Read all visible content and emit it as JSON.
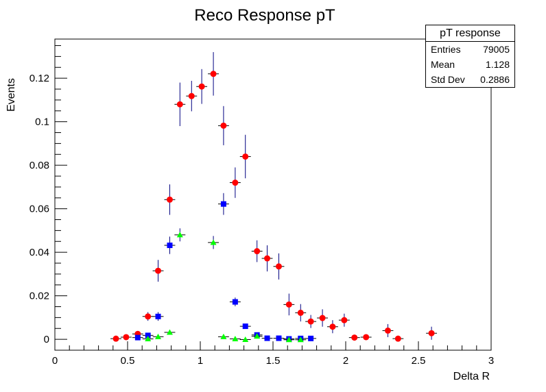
{
  "chart_data": {
    "type": "scatter",
    "title": "Reco Response pT",
    "xlabel": "Delta R",
    "ylabel": "Events",
    "xlim": [
      0,
      3
    ],
    "ylim": [
      -0.005,
      0.138
    ],
    "xticks": [
      "0",
      "0.5",
      "1",
      "1.5",
      "2",
      "2.5",
      "3"
    ],
    "yticks": [
      "0",
      "0.02",
      "0.04",
      "0.06",
      "0.08",
      "0.1",
      "0.12"
    ],
    "grid": false,
    "stats": {
      "title": "pT response",
      "rows": [
        {
          "label": "Entries",
          "value": "79005"
        },
        {
          "label": "Mean",
          "value": "1.128"
        },
        {
          "label": "Std Dev",
          "value": "0.2886"
        }
      ]
    },
    "series": [
      {
        "marker": "circle",
        "color": "#ff0000",
        "errcolor": "#000080",
        "points": [
          {
            "x": 0.42,
            "y": 0.0003,
            "e": 0.0005
          },
          {
            "x": 0.49,
            "y": 0.001,
            "e": 0.0005
          },
          {
            "x": 0.57,
            "y": 0.0025,
            "e": 0.001
          },
          {
            "x": 0.64,
            "y": 0.0105,
            "e": 0.002
          },
          {
            "x": 0.71,
            "y": 0.0315,
            "e": 0.005
          },
          {
            "x": 0.79,
            "y": 0.0642,
            "e": 0.007
          },
          {
            "x": 0.86,
            "y": 0.108,
            "e": 0.01
          },
          {
            "x": 0.94,
            "y": 0.1118,
            "e": 0.007
          },
          {
            "x": 1.01,
            "y": 0.1162,
            "e": 0.008
          },
          {
            "x": 1.09,
            "y": 0.122,
            "e": 0.01
          },
          {
            "x": 1.16,
            "y": 0.0982,
            "e": 0.009
          },
          {
            "x": 1.24,
            "y": 0.072,
            "e": 0.007
          },
          {
            "x": 1.31,
            "y": 0.084,
            "e": 0.01
          },
          {
            "x": 1.39,
            "y": 0.0405,
            "e": 0.005
          },
          {
            "x": 1.46,
            "y": 0.0372,
            "e": 0.006
          },
          {
            "x": 1.54,
            "y": 0.0335,
            "e": 0.006
          },
          {
            "x": 1.61,
            "y": 0.016,
            "e": 0.005
          },
          {
            "x": 1.69,
            "y": 0.0122,
            "e": 0.004
          },
          {
            "x": 1.76,
            "y": 0.0082,
            "e": 0.003
          },
          {
            "x": 1.84,
            "y": 0.0098,
            "e": 0.004
          },
          {
            "x": 1.91,
            "y": 0.0058,
            "e": 0.003
          },
          {
            "x": 1.99,
            "y": 0.0088,
            "e": 0.003
          },
          {
            "x": 2.06,
            "y": 0.0008,
            "e": 0.0005
          },
          {
            "x": 2.14,
            "y": 0.001,
            "e": 0.0005
          },
          {
            "x": 2.29,
            "y": 0.004,
            "e": 0.003
          },
          {
            "x": 2.36,
            "y": 0.0003,
            "e": 0.0005
          },
          {
            "x": 2.59,
            "y": 0.0028,
            "e": 0.003
          }
        ]
      },
      {
        "marker": "square",
        "color": "#0000ff",
        "errcolor": "#000080",
        "points": [
          {
            "x": 0.57,
            "y": 0.0008,
            "e": 0.0005
          },
          {
            "x": 0.64,
            "y": 0.0018,
            "e": 0.001
          },
          {
            "x": 0.71,
            "y": 0.0105,
            "e": 0.002
          },
          {
            "x": 0.79,
            "y": 0.0432,
            "e": 0.004
          },
          {
            "x": 1.16,
            "y": 0.0622,
            "e": 0.005
          },
          {
            "x": 1.24,
            "y": 0.0172,
            "e": 0.002
          },
          {
            "x": 1.31,
            "y": 0.006,
            "e": 0.001
          },
          {
            "x": 1.39,
            "y": 0.002,
            "e": 0.001
          },
          {
            "x": 1.46,
            "y": 0.0005,
            "e": 0.0005
          },
          {
            "x": 1.54,
            "y": 0.0005,
            "e": 0.0005
          },
          {
            "x": 1.61,
            "y": 0.0002,
            "e": 0.0005
          },
          {
            "x": 1.69,
            "y": 0.0004,
            "e": 0.0005
          },
          {
            "x": 1.76,
            "y": 0.0004,
            "e": 0.0005
          }
        ]
      },
      {
        "marker": "triangle",
        "color": "#00ff00",
        "errcolor": "#000080",
        "points": [
          {
            "x": 0.64,
            "y": 0.0002,
            "e": 0.0005
          },
          {
            "x": 0.71,
            "y": 0.0012,
            "e": 0.0005
          },
          {
            "x": 0.79,
            "y": 0.0032,
            "e": 0.001
          },
          {
            "x": 0.86,
            "y": 0.048,
            "e": 0.003
          },
          {
            "x": 1.09,
            "y": 0.0445,
            "e": 0.003
          },
          {
            "x": 1.16,
            "y": 0.0012,
            "e": 0.0005
          },
          {
            "x": 1.24,
            "y": 0.0002,
            "e": 0.0005
          },
          {
            "x": 1.31,
            "y": -0.0001,
            "e": 0.0005
          },
          {
            "x": 1.39,
            "y": 0.0014,
            "e": 0.001
          },
          {
            "x": 1.61,
            "y": -0.0002,
            "e": 0.0005
          },
          {
            "x": 1.69,
            "y": -0.0002,
            "e": 0.0005
          }
        ]
      }
    ]
  }
}
